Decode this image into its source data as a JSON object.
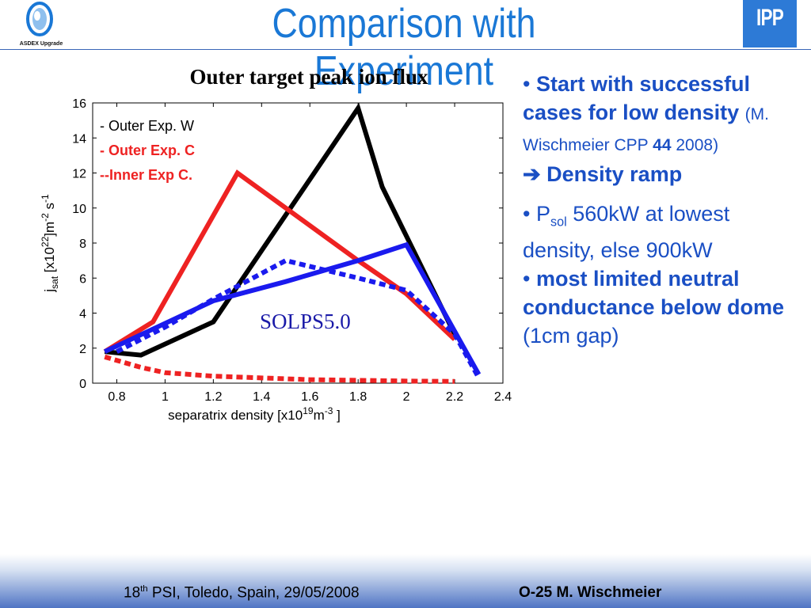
{
  "slide": {
    "title": "Comparison with Experiment",
    "logo_left_text": "ASDEX Upgrade",
    "logo_right_text": "IPP"
  },
  "chart_data": {
    "type": "line",
    "title": "Outer target peak ion flux",
    "xlabel": "separatrix density [x10^19 m^-3 ]",
    "ylabel": "j_sat [x10^22 m^-2 s^-1 ]",
    "xlim": [
      0.7,
      2.4
    ],
    "ylim": [
      0,
      16
    ],
    "xticks": [
      "0.8",
      "1",
      "1.2",
      "1.4",
      "1.6",
      "1.8",
      "2",
      "2.2",
      "2.4"
    ],
    "yticks": [
      "0",
      "2",
      "4",
      "6",
      "8",
      "10",
      "12",
      "14",
      "16"
    ],
    "grid": false,
    "legend_position": "top-left",
    "annotation": "SOLPS5.0",
    "legend": [
      {
        "label": "- Outer Exp. W",
        "color": "#000000"
      },
      {
        "label": "- Outer Exp. C",
        "color": "#ee2222"
      },
      {
        "label": "--Inner Exp C.",
        "color": "#ee2222"
      }
    ],
    "series": [
      {
        "color": "#000000",
        "style": "solid",
        "x": [
          0.75,
          0.9,
          1.2,
          1.8,
          1.9,
          2.2
        ],
        "y": [
          1.8,
          1.6,
          3.5,
          15.7,
          11.2,
          2.8
        ]
      },
      {
        "color": "#ee2222",
        "style": "solid",
        "x": [
          0.75,
          0.95,
          1.3,
          1.8,
          2.0,
          2.2
        ],
        "y": [
          1.8,
          3.5,
          12.0,
          7.0,
          5.1,
          2.5
        ]
      },
      {
        "color": "#ee2222",
        "style": "dotted",
        "x": [
          0.75,
          0.9,
          1.0,
          1.2,
          1.6,
          2.0,
          2.2
        ],
        "y": [
          1.5,
          0.9,
          0.6,
          0.4,
          0.2,
          0.12,
          0.1
        ]
      },
      {
        "color": "#1a1aee",
        "style": "solid",
        "x": [
          0.75,
          1.2,
          1.5,
          1.8,
          2.0,
          2.3
        ],
        "y": [
          1.8,
          4.7,
          5.8,
          7.0,
          7.9,
          0.5
        ]
      },
      {
        "color": "#1a1aee",
        "style": "dotted",
        "x": [
          0.8,
          1.0,
          1.2,
          1.5,
          1.8,
          2.0,
          2.2,
          2.3
        ],
        "y": [
          1.8,
          3.2,
          4.8,
          7.0,
          6.0,
          5.3,
          2.8,
          0.3
        ]
      }
    ]
  },
  "bullets": {
    "b1_bold": "Start with successful cases for low density",
    "b1_ref_pre": "(M. Wischmeier CPP",
    "b1_ref_vol": "44",
    "b1_ref_year": "2008)",
    "arrow": "➔",
    "b1_ramp": "Density ramp",
    "b2_p": "P",
    "b2_sub": "sol",
    "b2_rest": "560kW at lowest density, else 900kW",
    "b3_bold": "most limited neutral conductance below dome",
    "b3_rest": "(1cm gap)"
  },
  "footer": {
    "left_num": "18",
    "left_sup": "th",
    "left_rest": "PSI, Toledo, Spain, 29/05/2008",
    "right": "O-25 M. Wischmeier"
  }
}
